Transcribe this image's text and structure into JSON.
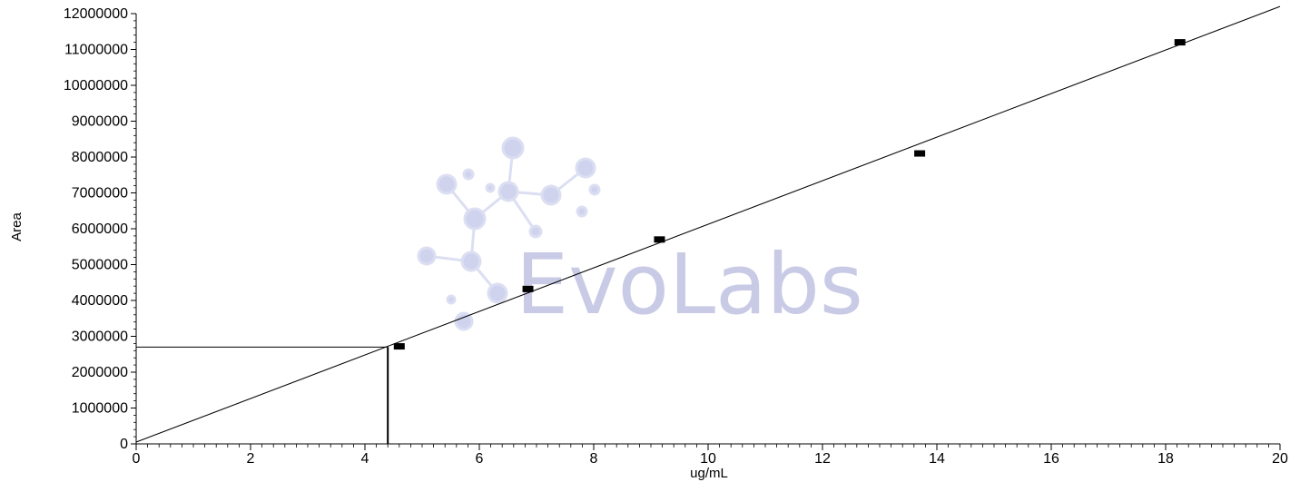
{
  "chart_data": {
    "type": "scatter",
    "xlabel": "ug/mL",
    "ylabel": "Area",
    "xlim": [
      0,
      20
    ],
    "ylim": [
      0,
      12000000
    ],
    "x_ticks": [
      0,
      2,
      4,
      6,
      8,
      10,
      12,
      14,
      16,
      18,
      20
    ],
    "y_ticks": [
      0,
      1000000,
      2000000,
      3000000,
      4000000,
      5000000,
      6000000,
      7000000,
      8000000,
      9000000,
      10000000,
      11000000,
      12000000
    ],
    "points": [
      {
        "x": 4.6,
        "y": 2720000
      },
      {
        "x": 6.85,
        "y": 4320000
      },
      {
        "x": 9.15,
        "y": 5700000
      },
      {
        "x": 13.7,
        "y": 8100000
      },
      {
        "x": 18.25,
        "y": 11200000
      }
    ],
    "fit_line": {
      "x0": 0,
      "y0": 50000,
      "x1": 20,
      "y1": 12200000
    },
    "readout": {
      "x": 4.4,
      "y": 2700000
    },
    "grid": false,
    "watermark": "EvoLabs",
    "colors": {
      "points": "#000000",
      "line": "#000000",
      "watermark": "#c9cbe6"
    }
  }
}
